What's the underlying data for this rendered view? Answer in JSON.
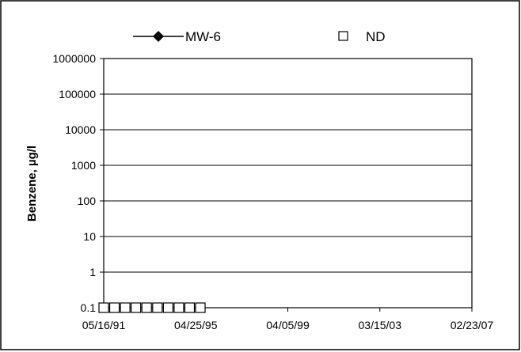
{
  "chart_data": {
    "type": "scatter",
    "title": "",
    "xlabel": "",
    "ylabel": "Benzene, µg/l",
    "yscale": "log",
    "ylim": [
      0.1,
      1000000
    ],
    "yticks": [
      "0.1",
      "1",
      "10",
      "100",
      "1000",
      "10000",
      "100000",
      "1000000"
    ],
    "xlim": [
      "1991-05-16",
      "2007-02-23"
    ],
    "xticks": [
      "05/16/91",
      "04/25/95",
      "04/05/99",
      "03/15/03",
      "02/23/07"
    ],
    "grid": "horizontal",
    "legend_position": "top",
    "series": [
      {
        "name": "MW-6",
        "marker": "diamond",
        "line": true,
        "color": "#000000",
        "points": []
      },
      {
        "name": "ND",
        "marker": "open-square",
        "line": false,
        "color": "#000000",
        "points": [
          {
            "x": "1991-05-16",
            "y": 0.1
          },
          {
            "x": "1991-10-31",
            "y": 0.1
          },
          {
            "x": "1992-04-16",
            "y": 0.1
          },
          {
            "x": "1992-10-01",
            "y": 0.1
          },
          {
            "x": "1993-03-18",
            "y": 0.1
          },
          {
            "x": "1993-09-02",
            "y": 0.1
          },
          {
            "x": "1994-02-17",
            "y": 0.1
          },
          {
            "x": "1994-08-04",
            "y": 0.1
          },
          {
            "x": "1995-01-19",
            "y": 0.1
          },
          {
            "x": "1995-07-06",
            "y": 0.1
          }
        ]
      }
    ]
  }
}
